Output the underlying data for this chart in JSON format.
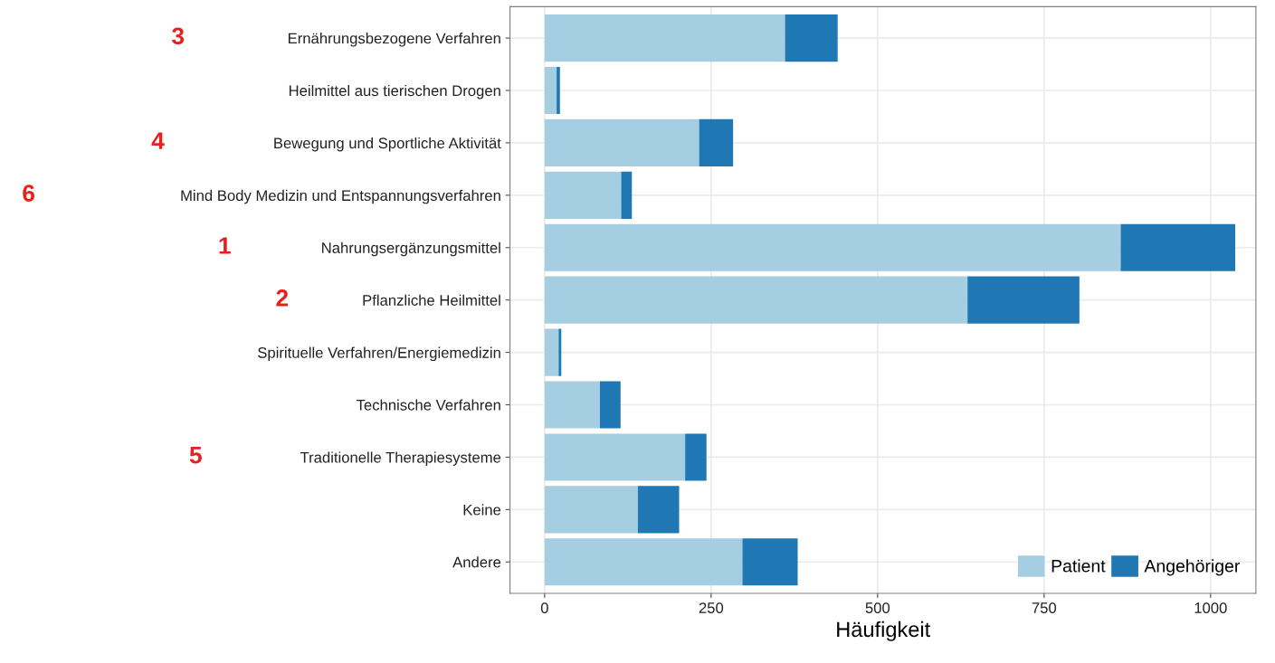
{
  "chart_data": {
    "type": "bar",
    "orientation": "horizontal",
    "stacked": true,
    "xlabel": "Häufigkeit",
    "categories": [
      "Ernährungsbezogene Verfahren",
      "Heilmittel aus tierischen Drogen",
      "Bewegung und Sportliche Aktivität",
      "Mind Body Medizin und Entspannungsverfahren",
      "Nahrungsergänzungsmittel",
      "Pflanzliche Heilmittel",
      "Spirituelle Verfahren/Energiemedizin",
      "Technische Verfahren",
      "Traditionelle Therapiesysteme",
      "Keine",
      "Andere"
    ],
    "series": [
      {
        "name": "Patient",
        "color": "#a6cee3",
        "values": [
          361,
          18,
          232,
          115,
          865,
          635,
          21,
          83,
          211,
          140,
          297
        ]
      },
      {
        "name": "Angehöriger",
        "color": "#1f78b4",
        "values": [
          79,
          5,
          51,
          16,
          172,
          168,
          4,
          31,
          32,
          62,
          83
        ]
      }
    ],
    "xlim": [
      -52,
      1068
    ],
    "xticks": [
      0,
      250,
      500,
      750,
      1000
    ],
    "grid": true,
    "legend": "bottom right",
    "annotations": [
      "3",
      "4",
      "6",
      "1",
      "2",
      "5"
    ]
  }
}
